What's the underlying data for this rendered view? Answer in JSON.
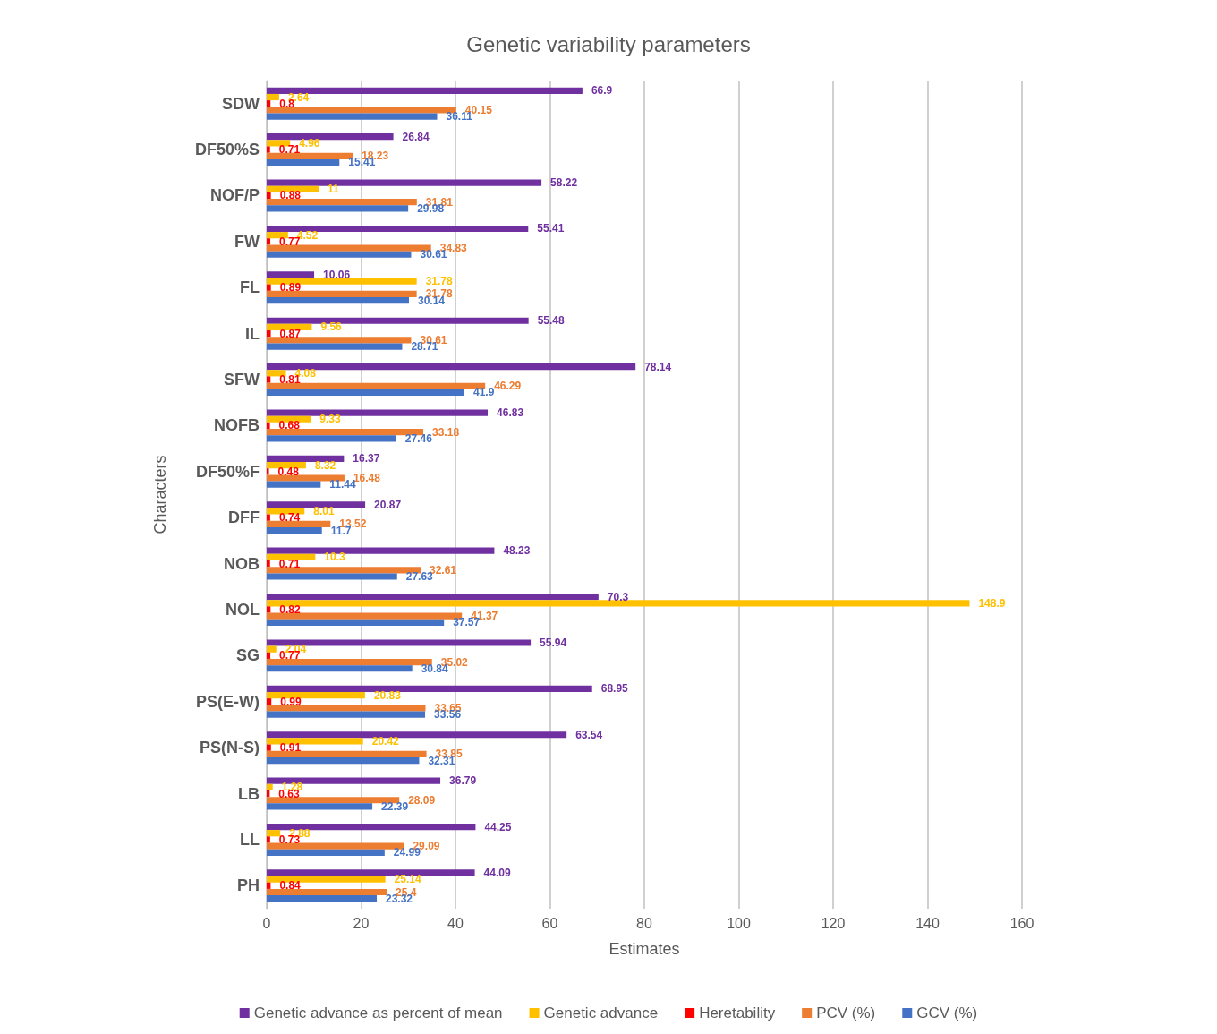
{
  "chart_data": {
    "type": "bar",
    "orientation": "horizontal",
    "title": "Genetic variability parameters",
    "xlabel": "Estimates",
    "ylabel": "Characters",
    "categories": [
      "SDW",
      "DF50%S",
      "NOF/P",
      "FW",
      "FL",
      "IL",
      "SFW",
      "NOFB",
      "DF50%F",
      "DFF",
      "NOB",
      "NOL",
      "SG",
      "PS(E-W)",
      "PS(N-S)",
      "LB",
      "LL",
      "PH"
    ],
    "series": [
      {
        "name": "Genetic advance as percent of mean",
        "color": "#7030a0",
        "values": [
          66.9,
          26.84,
          58.22,
          55.41,
          10.06,
          55.48,
          78.14,
          46.83,
          16.37,
          20.87,
          48.23,
          70.3,
          55.94,
          68.95,
          63.54,
          36.79,
          44.25,
          44.09
        ]
      },
      {
        "name": "Genetic advance",
        "color": "#ffc000",
        "values": [
          2.64,
          4.96,
          11,
          4.52,
          31.78,
          9.56,
          4.08,
          9.33,
          8.32,
          8.01,
          10.3,
          148.9,
          2.04,
          20.83,
          20.42,
          1.28,
          2.88,
          25.14
        ]
      },
      {
        "name": "Heretability",
        "color": "#ff0000",
        "values": [
          0.8,
          0.71,
          0.88,
          0.77,
          0.89,
          0.87,
          0.81,
          0.68,
          0.48,
          0.74,
          0.71,
          0.82,
          0.77,
          0.99,
          0.91,
          0.63,
          0.73,
          0.84
        ]
      },
      {
        "name": "PCV (%)",
        "color": "#ed7d31",
        "values": [
          40.15,
          18.23,
          31.81,
          34.83,
          31.78,
          30.61,
          46.29,
          33.18,
          16.48,
          13.52,
          32.61,
          41.37,
          35.02,
          33.65,
          33.85,
          28.09,
          29.09,
          25.4
        ]
      },
      {
        "name": "GCV (%)",
        "color": "#4472c4",
        "values": [
          36.11,
          15.41,
          29.98,
          30.61,
          30.14,
          28.71,
          41.9,
          27.46,
          11.44,
          11.7,
          27.63,
          37.57,
          30.84,
          33.56,
          32.31,
          22.39,
          24.99,
          23.32
        ]
      }
    ],
    "xlim": [
      0,
      160
    ],
    "xticks": [
      0,
      20,
      40,
      60,
      80,
      100,
      120,
      140,
      160
    ],
    "grid": "x",
    "legend": "bottom",
    "data_labels": true
  }
}
